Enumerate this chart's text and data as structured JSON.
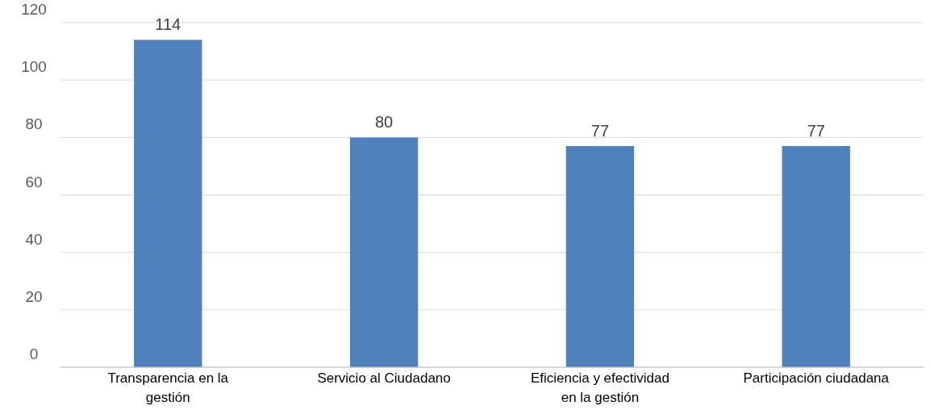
{
  "chart_data": {
    "type": "bar",
    "categories": [
      "Transparencia en la gestión",
      "Servicio al Ciudadano",
      "Eficiencia y efectividad en la gestión",
      "Participación ciudadana"
    ],
    "values": [
      114,
      80,
      77,
      77
    ],
    "color": "#4f81bd",
    "ylim": [
      0,
      120
    ],
    "yticks": [
      0,
      20,
      40,
      60,
      80,
      100,
      120
    ],
    "grid": "y",
    "data_labels": true
  }
}
